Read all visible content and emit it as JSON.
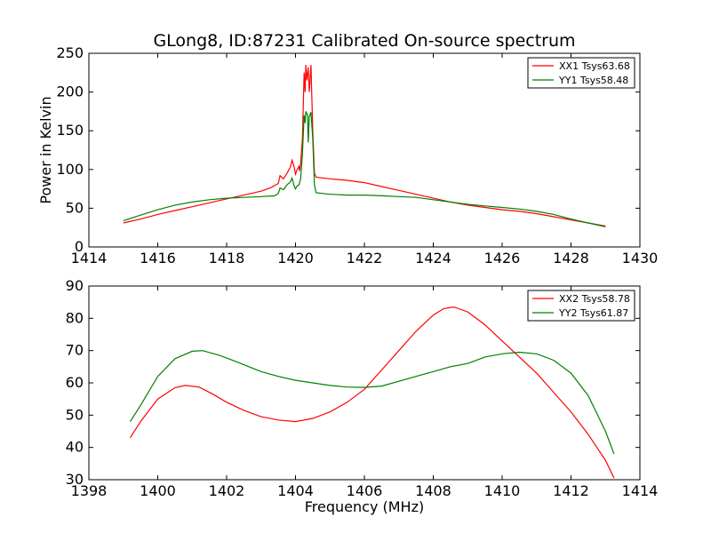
{
  "figure": {
    "title": "GLong8, ID:87231 Calibrated On-source spectrum"
  },
  "chart_data": [
    {
      "type": "line",
      "title": "GLong8, ID:87231 Calibrated On-source spectrum",
      "xlabel": "",
      "ylabel": "Power in Kelvin",
      "xlim": [
        1414,
        1430
      ],
      "ylim": [
        0,
        250
      ],
      "xticks": [
        1414,
        1416,
        1418,
        1420,
        1422,
        1424,
        1426,
        1428,
        1430
      ],
      "yticks": [
        0,
        50,
        100,
        150,
        200,
        250
      ],
      "grid": false,
      "legend": "top-right",
      "series": [
        {
          "name": "XX1 Tsys63.68",
          "color": "#ff0000",
          "points": [
            [
              1415.0,
              31
            ],
            [
              1415.5,
              36
            ],
            [
              1416.0,
              42
            ],
            [
              1416.5,
              47
            ],
            [
              1417.0,
              52
            ],
            [
              1417.5,
              57
            ],
            [
              1418.0,
              62
            ],
            [
              1418.5,
              67
            ],
            [
              1419.0,
              72
            ],
            [
              1419.3,
              77
            ],
            [
              1419.5,
              82
            ],
            [
              1419.55,
              92
            ],
            [
              1419.65,
              88
            ],
            [
              1419.75,
              95
            ],
            [
              1419.85,
              103
            ],
            [
              1419.9,
              112
            ],
            [
              1419.95,
              105
            ],
            [
              1420.0,
              94
            ],
            [
              1420.05,
              100
            ],
            [
              1420.1,
              104
            ],
            [
              1420.12,
              98
            ],
            [
              1420.15,
              108
            ],
            [
              1420.2,
              140
            ],
            [
              1420.25,
              225
            ],
            [
              1420.28,
              200
            ],
            [
              1420.3,
              235
            ],
            [
              1420.33,
              215
            ],
            [
              1420.37,
              232
            ],
            [
              1420.4,
              200
            ],
            [
              1420.45,
              235
            ],
            [
              1420.5,
              150
            ],
            [
              1420.55,
              95
            ],
            [
              1420.6,
              90
            ],
            [
              1421.0,
              88
            ],
            [
              1421.5,
              86
            ],
            [
              1422.0,
              83
            ],
            [
              1422.5,
              78
            ],
            [
              1423.0,
              73
            ],
            [
              1423.5,
              68
            ],
            [
              1424.0,
              63
            ],
            [
              1424.5,
              58
            ],
            [
              1425.0,
              54
            ],
            [
              1425.5,
              51
            ],
            [
              1426.0,
              48
            ],
            [
              1426.5,
              46
            ],
            [
              1427.0,
              43
            ],
            [
              1427.5,
              39
            ],
            [
              1428.0,
              35
            ],
            [
              1428.5,
              31
            ],
            [
              1429.0,
              27
            ]
          ]
        },
        {
          "name": "YY1 Tsys58.48",
          "color": "#008000",
          "points": [
            [
              1415.0,
              34
            ],
            [
              1415.5,
              41
            ],
            [
              1416.0,
              48
            ],
            [
              1416.5,
              54
            ],
            [
              1417.0,
              58
            ],
            [
              1417.5,
              61
            ],
            [
              1418.0,
              63
            ],
            [
              1418.5,
              64
            ],
            [
              1419.0,
              65
            ],
            [
              1419.4,
              66
            ],
            [
              1419.5,
              69
            ],
            [
              1419.55,
              76
            ],
            [
              1419.65,
              74
            ],
            [
              1419.75,
              80
            ],
            [
              1419.85,
              84
            ],
            [
              1419.9,
              89
            ],
            [
              1419.95,
              80
            ],
            [
              1420.0,
              75
            ],
            [
              1420.05,
              79
            ],
            [
              1420.1,
              80
            ],
            [
              1420.15,
              88
            ],
            [
              1420.2,
              120
            ],
            [
              1420.25,
              170
            ],
            [
              1420.28,
              160
            ],
            [
              1420.3,
              175
            ],
            [
              1420.35,
              170
            ],
            [
              1420.37,
              135
            ],
            [
              1420.4,
              168
            ],
            [
              1420.45,
              174
            ],
            [
              1420.5,
              140
            ],
            [
              1420.55,
              80
            ],
            [
              1420.6,
              70
            ],
            [
              1421.0,
              68
            ],
            [
              1421.5,
              67
            ],
            [
              1422.0,
              67
            ],
            [
              1422.5,
              66
            ],
            [
              1423.0,
              65
            ],
            [
              1423.5,
              64
            ],
            [
              1424.0,
              61
            ],
            [
              1424.5,
              58
            ],
            [
              1425.0,
              55
            ],
            [
              1425.5,
              53
            ],
            [
              1426.0,
              51
            ],
            [
              1426.5,
              49
            ],
            [
              1427.0,
              46
            ],
            [
              1427.5,
              42
            ],
            [
              1428.0,
              36
            ],
            [
              1428.5,
              31
            ],
            [
              1429.0,
              26
            ]
          ]
        }
      ]
    },
    {
      "type": "line",
      "title": "",
      "xlabel": "Frequency (MHz)",
      "ylabel": "",
      "xlim": [
        1398,
        1414
      ],
      "ylim": [
        30,
        90
      ],
      "xticks": [
        1398,
        1400,
        1402,
        1404,
        1406,
        1408,
        1410,
        1412,
        1414
      ],
      "yticks": [
        30,
        40,
        50,
        60,
        70,
        80,
        90
      ],
      "grid": false,
      "legend": "top-right",
      "series": [
        {
          "name": "XX2 Tsys58.78",
          "color": "#ff0000",
          "points": [
            [
              1399.2,
              43
            ],
            [
              1399.5,
              48
            ],
            [
              1400.0,
              55
            ],
            [
              1400.5,
              58.5
            ],
            [
              1400.8,
              59.2
            ],
            [
              1401.2,
              58.7
            ],
            [
              1401.6,
              56.5
            ],
            [
              1402.0,
              54
            ],
            [
              1402.5,
              51.5
            ],
            [
              1403.0,
              49.5
            ],
            [
              1403.5,
              48.5
            ],
            [
              1404.0,
              48
            ],
            [
              1404.5,
              49
            ],
            [
              1405.0,
              51
            ],
            [
              1405.5,
              54
            ],
            [
              1406.0,
              58
            ],
            [
              1406.5,
              64
            ],
            [
              1407.0,
              70
            ],
            [
              1407.5,
              76
            ],
            [
              1408.0,
              81
            ],
            [
              1408.3,
              83
            ],
            [
              1408.6,
              83.5
            ],
            [
              1409.0,
              82
            ],
            [
              1409.5,
              78
            ],
            [
              1410.0,
              73
            ],
            [
              1410.5,
              68
            ],
            [
              1411.0,
              63
            ],
            [
              1411.5,
              57
            ],
            [
              1412.0,
              51
            ],
            [
              1412.5,
              44
            ],
            [
              1413.0,
              36
            ],
            [
              1413.25,
              30.5
            ]
          ]
        },
        {
          "name": "YY2 Tsys61.87",
          "color": "#008000",
          "points": [
            [
              1399.2,
              48
            ],
            [
              1399.5,
              53
            ],
            [
              1400.0,
              62
            ],
            [
              1400.5,
              67.5
            ],
            [
              1401.0,
              69.8
            ],
            [
              1401.3,
              70
            ],
            [
              1401.8,
              68.5
            ],
            [
              1402.3,
              66.5
            ],
            [
              1403.0,
              63.5
            ],
            [
              1403.5,
              62
            ],
            [
              1404.0,
              60.8
            ],
            [
              1404.5,
              60
            ],
            [
              1405.0,
              59.2
            ],
            [
              1405.5,
              58.7
            ],
            [
              1406.0,
              58.6
            ],
            [
              1406.5,
              59
            ],
            [
              1407.0,
              60.5
            ],
            [
              1407.5,
              62
            ],
            [
              1408.0,
              63.5
            ],
            [
              1408.5,
              65
            ],
            [
              1409.0,
              66
            ],
            [
              1409.5,
              68
            ],
            [
              1410.0,
              69
            ],
            [
              1410.5,
              69.5
            ],
            [
              1411.0,
              69
            ],
            [
              1411.5,
              67
            ],
            [
              1412.0,
              63
            ],
            [
              1412.5,
              56
            ],
            [
              1413.0,
              45
            ],
            [
              1413.25,
              38
            ]
          ]
        }
      ]
    }
  ]
}
